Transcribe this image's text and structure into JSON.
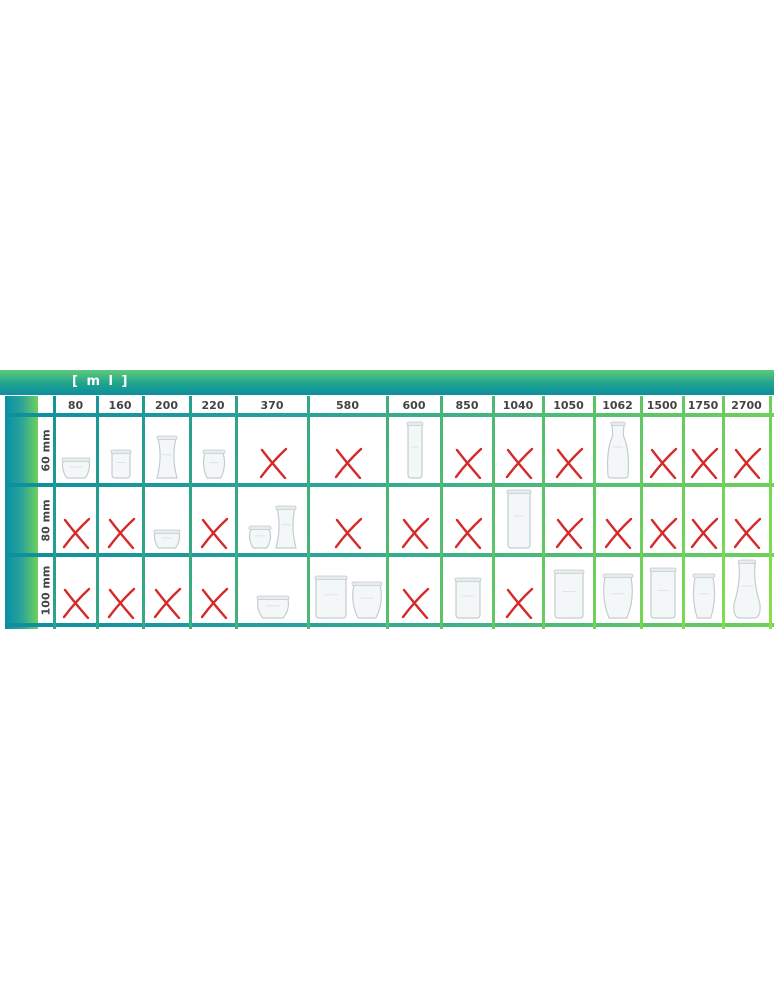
{
  "unit_label": "[ m l ]",
  "colors": {
    "teal": "#0d8ea0",
    "green": "#6fd05a",
    "cross": "#d42a2a",
    "glass": "#c9d3d6"
  },
  "columns": [
    "80",
    "160",
    "200",
    "220",
    "370",
    "580",
    "600",
    "850",
    "1040",
    "1050",
    "1062",
    "1500",
    "1750",
    "2700"
  ],
  "rows": [
    {
      "label": "60 mm",
      "cells": [
        [
          "jar-bowl"
        ],
        [
          "jar-cylinder-small"
        ],
        [
          "jar-waisted"
        ],
        [
          "jar-tulip"
        ],
        [
          "cross"
        ],
        [
          "cross"
        ],
        [
          "jar-tall-cylinder"
        ],
        [
          "cross"
        ],
        [
          "cross"
        ],
        [
          "cross"
        ],
        [
          "jar-carafe"
        ],
        [
          "cross"
        ],
        [
          "cross"
        ],
        [
          "cross"
        ]
      ]
    },
    {
      "label": "80 mm",
      "cells": [
        [
          "cross"
        ],
        [
          "cross"
        ],
        [
          "jar-bowl-low"
        ],
        [
          "cross"
        ],
        [
          "jar-tulip-small",
          "jar-waisted"
        ],
        [
          "cross"
        ],
        [
          "cross"
        ],
        [
          "cross"
        ],
        [
          "jar-tall-cylinder-wide"
        ],
        [
          "cross"
        ],
        [
          "cross"
        ],
        [
          "cross"
        ],
        [
          "cross"
        ],
        [
          "cross"
        ]
      ]
    },
    {
      "label": "100 mm",
      "cells": [
        [
          "cross"
        ],
        [
          "cross"
        ],
        [
          "cross"
        ],
        [
          "cross"
        ],
        [
          "jar-bowl-wide"
        ],
        [
          "jar-cylinder-wide",
          "jar-tulip-wide"
        ],
        [
          "cross"
        ],
        [
          "jar-cylinder-medium"
        ],
        [
          "cross"
        ],
        [
          "jar-cylinder-large"
        ],
        [
          "jar-tulip-large"
        ],
        [
          "jar-cylinder-tall"
        ],
        [
          "jar-tulip-tall"
        ],
        [
          "jar-tulip-xl"
        ]
      ]
    }
  ]
}
